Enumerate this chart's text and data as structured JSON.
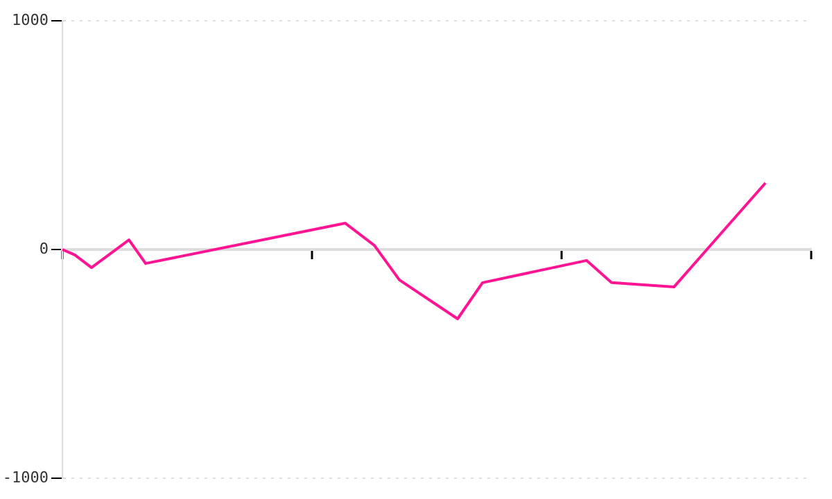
{
  "chart_data": {
    "type": "line",
    "categories": [
      null,
      null,
      null,
      null,
      null,
      null,
      null,
      null,
      null,
      null,
      null,
      null,
      null,
      null,
      null,
      null,
      null,
      null,
      null,
      null,
      null,
      null,
      null,
      null,
      null,
      null,
      null,
      null,
      null,
      null,
      null,
      null,
      null,
      null,
      null,
      null,
      null,
      null,
      null,
      null,
      null,
      null,
      null,
      null,
      null,
      null,
      null,
      null,
      null,
      null,
      null,
      null,
      null,
      null,
      null,
      null,
      null,
      null,
      null,
      null,
      null,
      null,
      null,
      null,
      null,
      null,
      null,
      null,
      null,
      null,
      null,
      null,
      null,
      null,
      null,
      null,
      null,
      null,
      null,
      null,
      null,
      null,
      null,
      null,
      null,
      null,
      null,
      null,
      null,
      null,
      null,
      null,
      null,
      null,
      null,
      null,
      null,
      null,
      null,
      null,
      null,
      null,
      null,
      null,
      null,
      null,
      null,
      null,
      null,
      null,
      null,
      null,
      null,
      null,
      null,
      null,
      null,
      null,
      null,
      null,
      null,
      null,
      null,
      null,
      null,
      null,
      null,
      null,
      null,
      null,
      null,
      null,
      null,
      null,
      null,
      null,
      null,
      null,
      null,
      null,
      null,
      null,
      null,
      null,
      null,
      null,
      null,
      null,
      null,
      null,
      null,
      null,
      null,
      null,
      null,
      null,
      null,
      null,
      null,
      null,
      null,
      null,
      null,
      null,
      null,
      null,
      null,
      null,
      null,
      null,
      null,
      null,
      null,
      null,
      null,
      null,
      null,
      null,
      null,
      null,
      null
    ],
    "series": [
      {
        "color": "#ff1493",
        "values": [
          0,
          null,
          null,
          -24,
          null,
          null,
          null,
          -79,
          null,
          null,
          null,
          null,
          null,
          null,
          null,
          null,
          42,
          null,
          null,
          null,
          -61,
          null,
          null,
          null,
          null,
          null,
          null,
          null,
          null,
          null,
          null,
          null,
          null,
          null,
          null,
          null,
          null,
          null,
          null,
          null,
          null,
          null,
          null,
          null,
          null,
          null,
          null,
          null,
          null,
          null,
          null,
          null,
          null,
          null,
          null,
          null,
          null,
          null,
          null,
          null,
          null,
          null,
          null,
          null,
          null,
          null,
          null,
          null,
          115,
          null,
          null,
          null,
          null,
          null,
          null,
          18,
          null,
          null,
          null,
          null,
          null,
          -133,
          null,
          null,
          null,
          null,
          null,
          null,
          null,
          null,
          null,
          null,
          null,
          null,
          null,
          -303,
          null,
          null,
          null,
          null,
          null,
          -145,
          null,
          null,
          null,
          null,
          null,
          null,
          null,
          null,
          null,
          null,
          null,
          null,
          null,
          null,
          null,
          null,
          null,
          null,
          null,
          null,
          null,
          null,
          null,
          null,
          -48,
          null,
          null,
          null,
          null,
          null,
          -145,
          null,
          null,
          null,
          null,
          null,
          null,
          null,
          null,
          null,
          null,
          null,
          null,
          null,
          null,
          -164,
          null,
          null,
          null,
          null,
          null,
          null,
          null,
          null,
          null,
          null,
          null,
          null,
          null,
          null,
          null,
          null,
          null,
          null,
          null,
          null,
          null,
          291,
          null,
          null,
          null,
          null,
          null,
          null,
          null,
          null,
          null,
          null,
          null
        ]
      }
    ],
    "ylim": [
      -1000,
      1000
    ],
    "yticks": [
      -1000,
      0,
      1000
    ],
    "grid": "y",
    "tick_labels": "y",
    "legend": false,
    "marker": "none",
    "line_style": "solid"
  }
}
